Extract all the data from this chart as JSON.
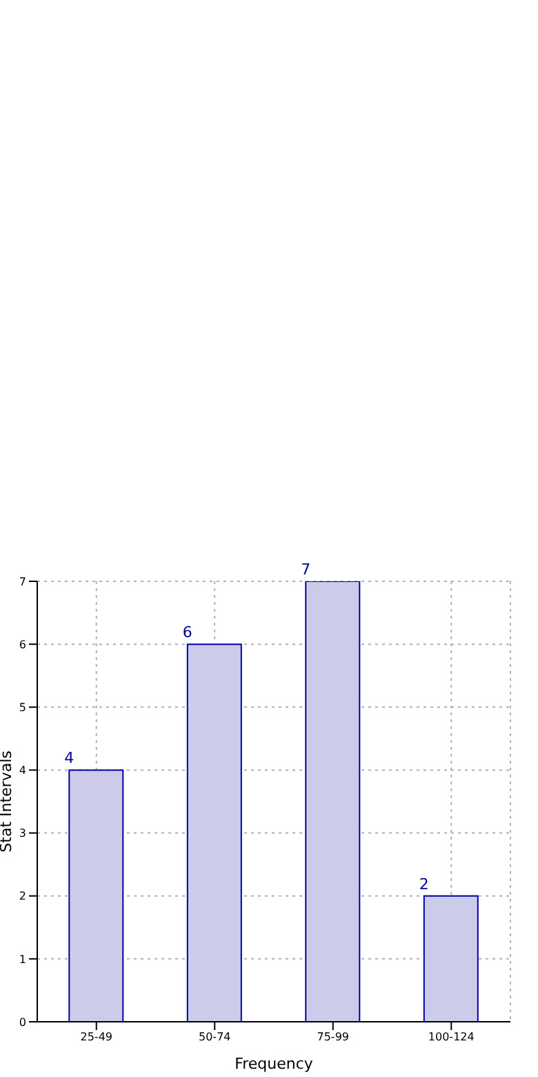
{
  "chart_data": {
    "type": "bar",
    "xlabel": "Frequency",
    "ylabel": "Stat Intervals",
    "categories": [
      "25-49",
      "50-74",
      "75-99",
      "100-124"
    ],
    "values": [
      4,
      6,
      7,
      2
    ],
    "color": "#ccccea",
    "ylim": [
      0,
      7
    ],
    "yticks": [
      0,
      1,
      2,
      3,
      4,
      5,
      6,
      7
    ],
    "grid": true,
    "data_labels": true
  }
}
